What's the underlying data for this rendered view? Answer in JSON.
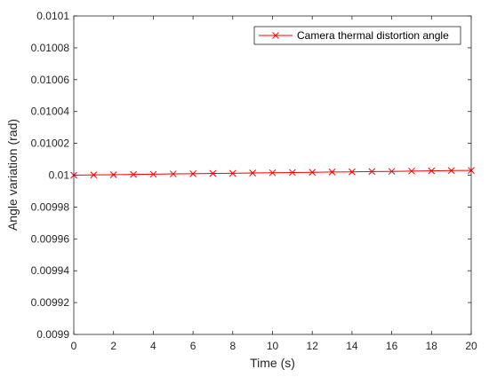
{
  "chart_data": {
    "type": "line",
    "title": "",
    "xlabel": "Time (s)",
    "ylabel": "Angle variation (rad)",
    "xlim": [
      0,
      20
    ],
    "ylim": [
      0.0099,
      0.0101
    ],
    "xticks": [
      0,
      2,
      4,
      6,
      8,
      10,
      12,
      14,
      16,
      18,
      20
    ],
    "xtick_labels": [
      "0",
      "2",
      "4",
      "6",
      "8",
      "10",
      "12",
      "14",
      "16",
      "18",
      "20"
    ],
    "yticks": [
      0.0099,
      0.00992,
      0.00994,
      0.00996,
      0.00998,
      0.01,
      0.01002,
      0.01004,
      0.01006,
      0.01008,
      0.0101
    ],
    "ytick_labels": [
      "0.0099",
      "0.00992",
      "0.00994",
      "0.00996",
      "0.00998",
      "0.01",
      "0.01002",
      "0.01004",
      "0.01006",
      "0.01008",
      "0.0101"
    ],
    "grid": false,
    "legend_position": "top-right",
    "series": [
      {
        "name": "Camera thermal distortion angle",
        "color": "#ff0000",
        "marker": "x",
        "x": [
          0,
          1,
          2,
          3,
          4,
          5,
          6,
          7,
          8,
          9,
          10,
          11,
          12,
          13,
          14,
          15,
          16,
          17,
          18,
          19,
          20
        ],
        "y": [
          0.01,
          0.0100002,
          0.0100003,
          0.0100005,
          0.0100006,
          0.0100008,
          0.0100009,
          0.0100011,
          0.0100012,
          0.0100014,
          0.0100015,
          0.0100017,
          0.0100018,
          0.010002,
          0.0100021,
          0.0100023,
          0.0100024,
          0.0100026,
          0.0100027,
          0.0100029,
          0.010003
        ]
      }
    ]
  }
}
